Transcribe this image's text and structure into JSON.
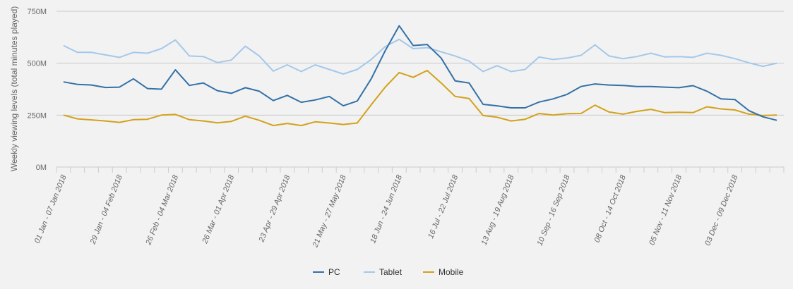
{
  "chart_data": {
    "type": "line",
    "ylabel": "Weekly viewing levels (total minutes played)",
    "ylim": [
      0,
      750
    ],
    "yticks": [
      0,
      250,
      500,
      750
    ],
    "ytick_labels": [
      "0M",
      "250M",
      "500M",
      "750M"
    ],
    "x_labels": [
      "01 Jan - 07 Jan 2018",
      "29 Jan - 04 Feb 2018",
      "26 Feb - 04 Mar 2018",
      "26 Mar - 01 Apr 2018",
      "23 Apr - 29 Apr 2018",
      "21 May - 27 May 2018",
      "18 Jun - 24 Jun 2018",
      "16 Jul - 22 Jul 2018",
      "13 Aug - 19 Aug 2018",
      "10 Sep - 16 Sep 2018",
      "08 Oct - 14 Oct 2018",
      "05 Nov - 11 Nov 2018",
      "03 Dec - 09 Dec 2018"
    ],
    "label_every": 4,
    "num_points": 52,
    "series": [
      {
        "name": "PC",
        "color": "#3371a7",
        "values": [
          410,
          398,
          395,
          383,
          385,
          425,
          378,
          375,
          468,
          393,
          405,
          368,
          355,
          382,
          365,
          320,
          345,
          312,
          323,
          340,
          295,
          318,
          425,
          560,
          680,
          585,
          590,
          525,
          415,
          405,
          302,
          295,
          285,
          285,
          313,
          328,
          350,
          388,
          400,
          395,
          393,
          388,
          388,
          385,
          382,
          392,
          365,
          328,
          325,
          272,
          242,
          225
        ]
      },
      {
        "name": "Tablet",
        "color": "#a4c8ea",
        "values": [
          585,
          552,
          552,
          540,
          528,
          552,
          548,
          570,
          612,
          535,
          532,
          503,
          515,
          582,
          535,
          462,
          492,
          460,
          492,
          470,
          448,
          470,
          518,
          580,
          615,
          570,
          575,
          555,
          535,
          510,
          460,
          488,
          460,
          470,
          530,
          518,
          525,
          538,
          588,
          535,
          522,
          532,
          548,
          530,
          532,
          528,
          548,
          538,
          522,
          502,
          485,
          500
        ]
      },
      {
        "name": "Mobile",
        "color": "#d3a11b",
        "values": [
          250,
          232,
          227,
          222,
          215,
          228,
          230,
          250,
          253,
          228,
          222,
          213,
          220,
          245,
          225,
          200,
          210,
          200,
          218,
          212,
          205,
          212,
          300,
          385,
          455,
          432,
          465,
          405,
          340,
          330,
          248,
          240,
          222,
          230,
          258,
          250,
          257,
          258,
          298,
          265,
          255,
          268,
          278,
          262,
          264,
          262,
          290,
          280,
          275,
          255,
          248,
          250
        ]
      }
    ],
    "legend": [
      "PC",
      "Tablet",
      "Mobile"
    ]
  }
}
